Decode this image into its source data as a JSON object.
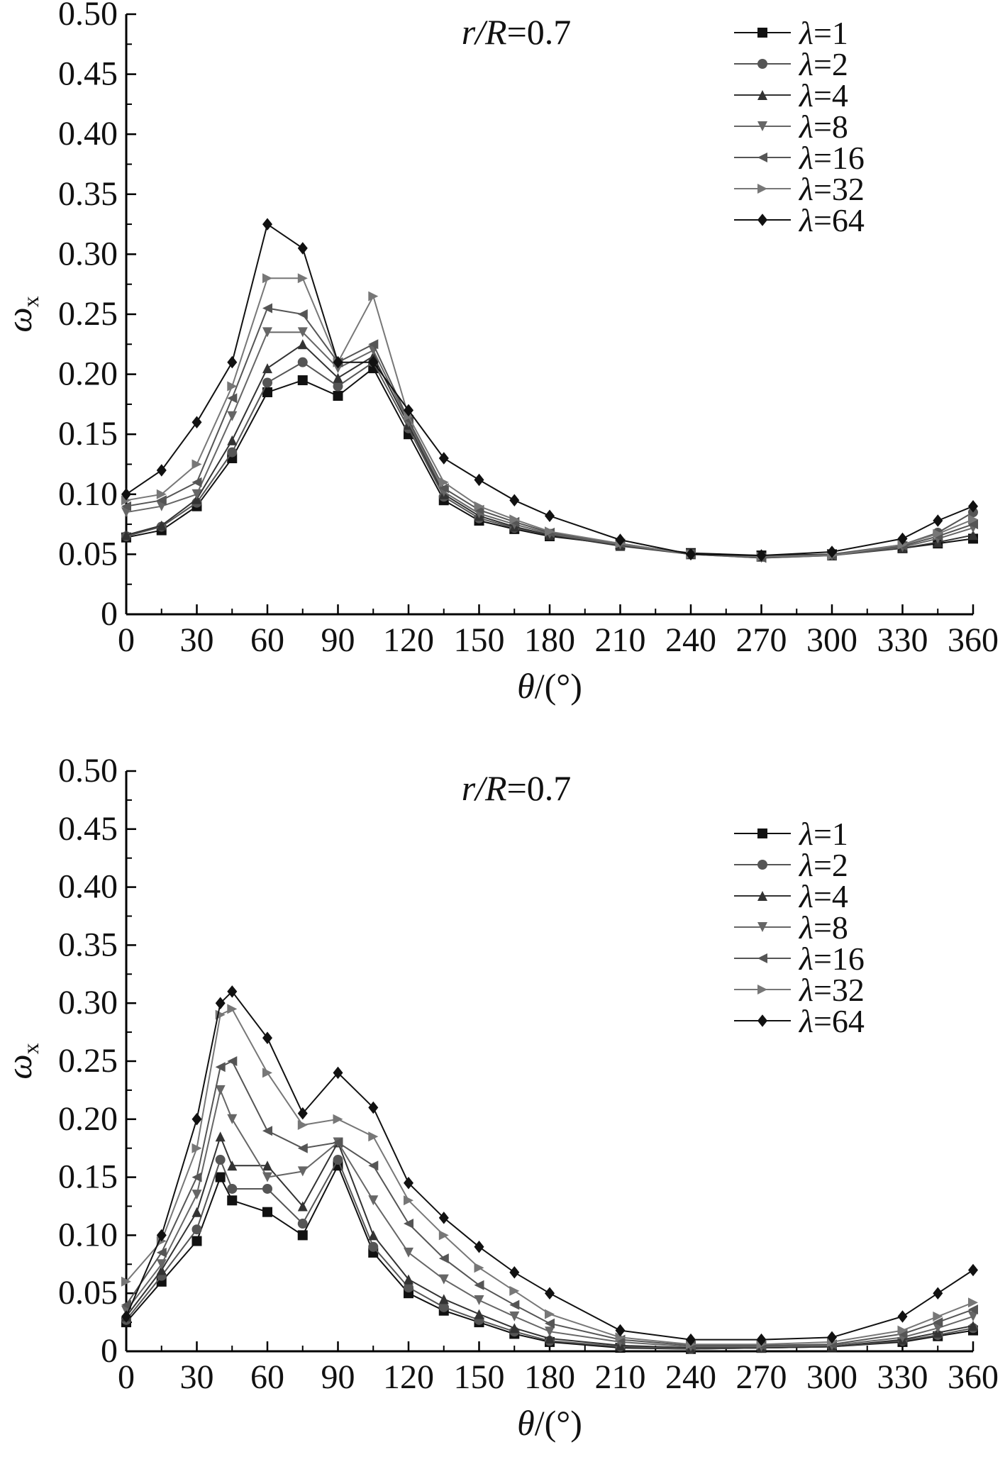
{
  "chart_data": [
    {
      "type": "line",
      "annotation": {
        "var": "r/R",
        "eq": "=0.7"
      },
      "xlabel": {
        "var": "θ",
        "unit": "/(°)"
      },
      "ylabel": {
        "var": "ω",
        "sub": "x"
      },
      "xlim": [
        0,
        360
      ],
      "ylim": [
        0,
        0.5
      ],
      "xticks": [
        "0",
        "30",
        "60",
        "90",
        "120",
        "150",
        "180",
        "210",
        "240",
        "270",
        "300",
        "330",
        "360"
      ],
      "yticks": [
        "0",
        "0.05",
        "0.10",
        "0.15",
        "0.20",
        "0.25",
        "0.30",
        "0.35",
        "0.40",
        "0.45",
        "0.50"
      ],
      "grid": false,
      "legend_position": "top-right",
      "x": [
        0,
        15,
        30,
        45,
        60,
        75,
        90,
        105,
        120,
        135,
        150,
        165,
        180,
        210,
        240,
        270,
        300,
        330,
        345,
        360
      ],
      "series": [
        {
          "name": "λ=1",
          "marker": "square",
          "color": "#111111",
          "values": [
            0.064,
            0.07,
            0.09,
            0.13,
            0.185,
            0.195,
            0.182,
            0.205,
            0.15,
            0.095,
            0.078,
            0.071,
            0.065,
            0.058,
            0.051,
            0.049,
            0.05,
            0.055,
            0.059,
            0.063
          ]
        },
        {
          "name": "λ=2",
          "marker": "circle",
          "color": "#555555",
          "values": [
            0.065,
            0.073,
            0.093,
            0.135,
            0.193,
            0.21,
            0.19,
            0.21,
            0.155,
            0.098,
            0.08,
            0.072,
            0.066,
            0.058,
            0.05,
            0.048,
            0.05,
            0.058,
            0.068,
            0.085
          ]
        },
        {
          "name": "λ=4",
          "marker": "triangle",
          "color": "#333333",
          "values": [
            0.066,
            0.074,
            0.096,
            0.145,
            0.205,
            0.225,
            0.197,
            0.215,
            0.158,
            0.1,
            0.082,
            0.073,
            0.066,
            0.057,
            0.05,
            0.048,
            0.049,
            0.055,
            0.06,
            0.066
          ]
        },
        {
          "name": "λ=8",
          "marker": "tri-down",
          "color": "#666666",
          "values": [
            0.085,
            0.09,
            0.1,
            0.165,
            0.235,
            0.235,
            0.205,
            0.22,
            0.16,
            0.102,
            0.084,
            0.075,
            0.067,
            0.058,
            0.05,
            0.047,
            0.049,
            0.056,
            0.063,
            0.072
          ]
        },
        {
          "name": "λ=16",
          "marker": "tri-left",
          "color": "#555555",
          "values": [
            0.09,
            0.095,
            0.11,
            0.18,
            0.255,
            0.25,
            0.21,
            0.225,
            0.162,
            0.105,
            0.087,
            0.077,
            0.068,
            0.059,
            0.05,
            0.047,
            0.049,
            0.057,
            0.065,
            0.075
          ]
        },
        {
          "name": "λ=32",
          "marker": "tri-right",
          "color": "#777777",
          "values": [
            0.095,
            0.1,
            0.125,
            0.19,
            0.28,
            0.28,
            0.21,
            0.265,
            0.165,
            0.11,
            0.09,
            0.079,
            0.069,
            0.059,
            0.05,
            0.048,
            0.049,
            0.058,
            0.067,
            0.079
          ]
        },
        {
          "name": "λ=64",
          "marker": "diamond",
          "color": "#111111",
          "values": [
            0.1,
            0.12,
            0.16,
            0.21,
            0.325,
            0.305,
            0.21,
            0.21,
            0.17,
            0.13,
            0.112,
            0.095,
            0.082,
            0.062,
            0.05,
            0.049,
            0.052,
            0.063,
            0.078,
            0.09
          ]
        }
      ]
    },
    {
      "type": "line",
      "annotation": {
        "var": "r/R",
        "eq": "=0.7"
      },
      "xlabel": {
        "var": "θ",
        "unit": "/(°)"
      },
      "ylabel": {
        "var": "ω",
        "sub": "x"
      },
      "xlim": [
        0,
        360
      ],
      "ylim": [
        0,
        0.5
      ],
      "xticks": [
        "0",
        "30",
        "60",
        "90",
        "120",
        "150",
        "180",
        "210",
        "240",
        "270",
        "300",
        "330",
        "360"
      ],
      "yticks": [
        "0",
        "0.05",
        "0.10",
        "0.15",
        "0.20",
        "0.25",
        "0.30",
        "0.35",
        "0.40",
        "0.45",
        "0.50"
      ],
      "grid": false,
      "legend_position": "top-right",
      "x": [
        0,
        15,
        30,
        40,
        45,
        60,
        75,
        90,
        105,
        120,
        135,
        150,
        165,
        180,
        210,
        240,
        270,
        300,
        330,
        345,
        360
      ],
      "series": [
        {
          "name": "λ=1",
          "marker": "square",
          "color": "#111111",
          "values": [
            0.025,
            0.06,
            0.095,
            0.15,
            0.13,
            0.12,
            0.1,
            0.16,
            0.085,
            0.05,
            0.035,
            0.025,
            0.015,
            0.008,
            0.003,
            0.002,
            0.003,
            0.004,
            0.008,
            0.013,
            0.018
          ]
        },
        {
          "name": "λ=2",
          "marker": "circle",
          "color": "#555555",
          "values": [
            0.027,
            0.065,
            0.105,
            0.165,
            0.14,
            0.14,
            0.11,
            0.165,
            0.09,
            0.055,
            0.038,
            0.027,
            0.017,
            0.009,
            0.004,
            0.002,
            0.003,
            0.004,
            0.009,
            0.014,
            0.02
          ]
        },
        {
          "name": "λ=4",
          "marker": "triangle",
          "color": "#333333",
          "values": [
            0.03,
            0.07,
            0.12,
            0.185,
            0.16,
            0.16,
            0.125,
            0.18,
            0.1,
            0.062,
            0.045,
            0.032,
            0.02,
            0.011,
            0.005,
            0.003,
            0.003,
            0.004,
            0.01,
            0.016,
            0.022
          ]
        },
        {
          "name": "λ=8",
          "marker": "tri-down",
          "color": "#666666",
          "values": [
            0.035,
            0.075,
            0.135,
            0.225,
            0.2,
            0.15,
            0.155,
            0.18,
            0.13,
            0.085,
            0.062,
            0.044,
            0.03,
            0.017,
            0.008,
            0.004,
            0.004,
            0.005,
            0.012,
            0.02,
            0.03
          ]
        },
        {
          "name": "λ=16",
          "marker": "tri-left",
          "color": "#555555",
          "values": [
            0.04,
            0.085,
            0.15,
            0.245,
            0.25,
            0.19,
            0.175,
            0.18,
            0.16,
            0.11,
            0.08,
            0.057,
            0.04,
            0.024,
            0.01,
            0.005,
            0.005,
            0.006,
            0.015,
            0.025,
            0.036
          ]
        },
        {
          "name": "λ=32",
          "marker": "tri-right",
          "color": "#777777",
          "values": [
            0.06,
            0.095,
            0.175,
            0.29,
            0.295,
            0.24,
            0.195,
            0.2,
            0.185,
            0.13,
            0.1,
            0.072,
            0.052,
            0.032,
            0.012,
            0.006,
            0.006,
            0.008,
            0.018,
            0.03,
            0.042
          ]
        },
        {
          "name": "λ=64",
          "marker": "diamond",
          "color": "#111111",
          "values": [
            0.03,
            0.1,
            0.2,
            0.3,
            0.31,
            0.27,
            0.205,
            0.24,
            0.21,
            0.145,
            0.115,
            0.09,
            0.068,
            0.05,
            0.018,
            0.01,
            0.01,
            0.012,
            0.03,
            0.05,
            0.07
          ]
        }
      ]
    }
  ]
}
